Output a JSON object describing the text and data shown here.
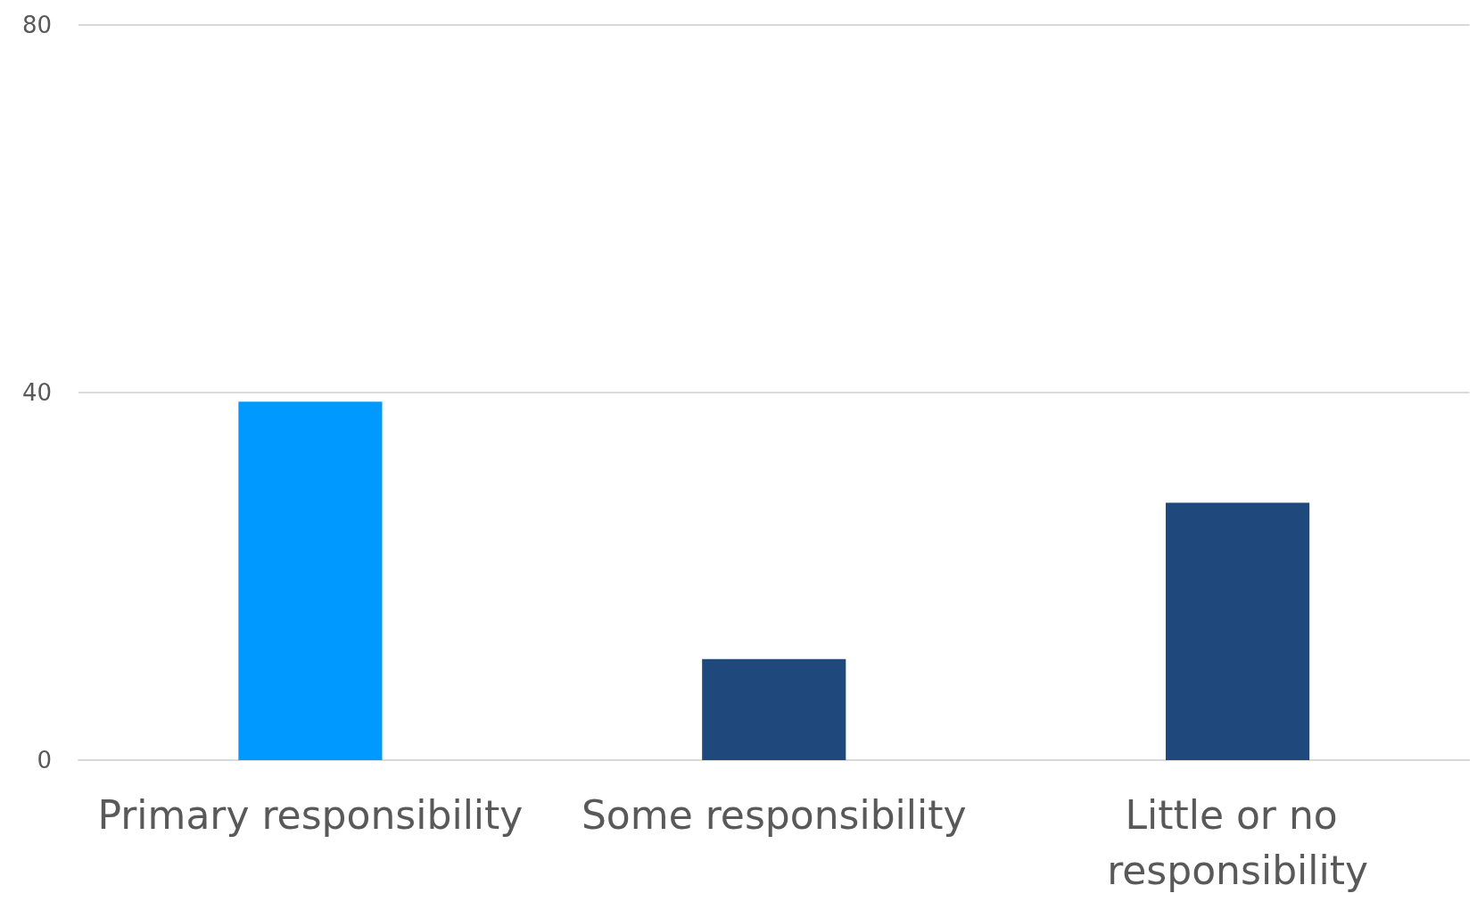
{
  "chart_data": {
    "type": "bar",
    "categories": [
      "Primary responsibility",
      "Some responsibility",
      "Little or no responsibility"
    ],
    "values": [
      39,
      11,
      28
    ],
    "colors": [
      "#0099ff",
      "#1f497d",
      "#1f497d"
    ],
    "ylim": [
      0,
      80
    ],
    "yticks": [
      0,
      40,
      80
    ],
    "grid": "y"
  }
}
